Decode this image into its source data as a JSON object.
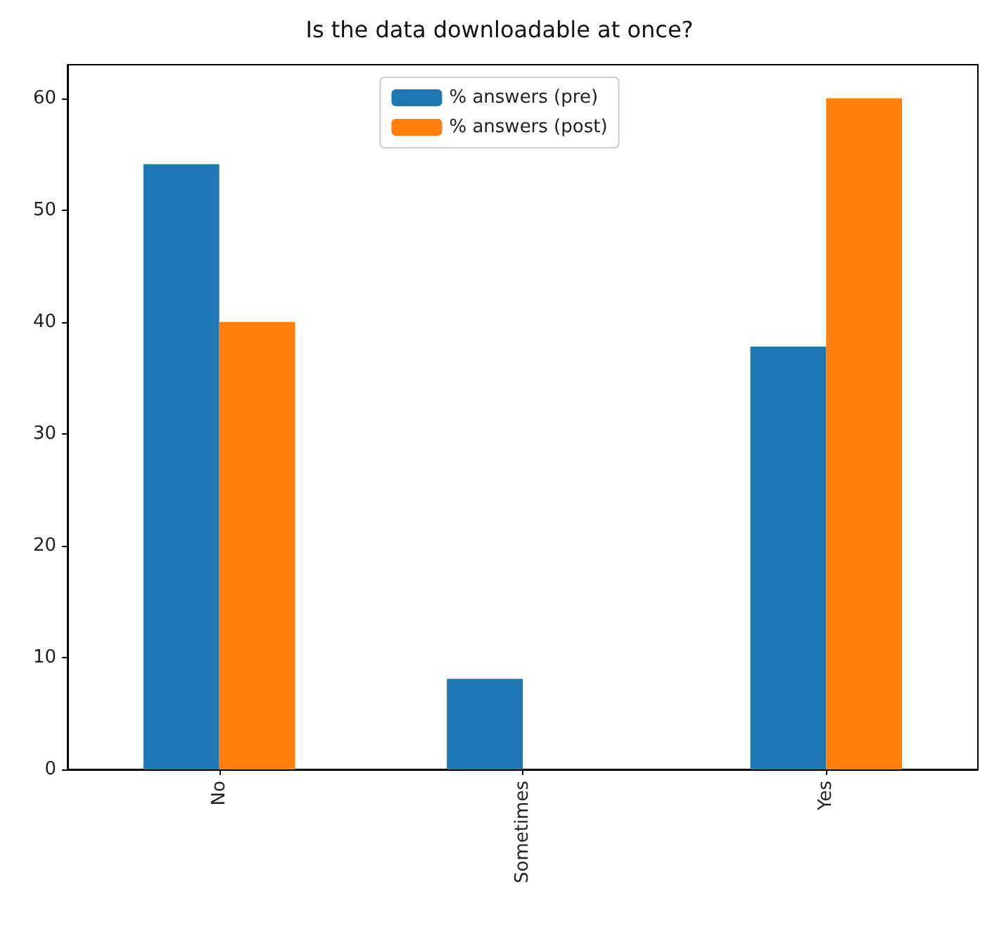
{
  "chart_data": {
    "type": "bar",
    "title": "Is the data downloadable at once?",
    "categories": [
      "No",
      "Sometimes",
      "Yes"
    ],
    "series": [
      {
        "name": "% answers (pre)",
        "color": "#1f77b4",
        "values": [
          54.1,
          8.1,
          37.8
        ]
      },
      {
        "name": "% answers (post)",
        "color": "#ff7f0e",
        "values": [
          40,
          0,
          60
        ]
      }
    ],
    "ylim": [
      0,
      63
    ],
    "yticks": [
      0,
      10,
      20,
      30,
      40,
      50,
      60
    ],
    "grid": false,
    "legend": "top"
  }
}
